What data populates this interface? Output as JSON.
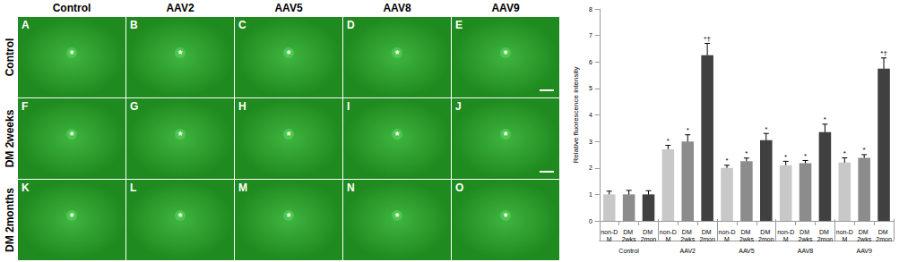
{
  "image_panels": {
    "column_labels": [
      "Control",
      "AAV2",
      "AAV5",
      "AAV8",
      "AAV9"
    ],
    "row_labels": [
      "Control",
      "DM 2weeks",
      "DM 2months"
    ],
    "panel_letters": [
      [
        "A",
        "B",
        "C",
        "D",
        "E"
      ],
      [
        "F",
        "G",
        "H",
        "I",
        "J"
      ],
      [
        "K",
        "L",
        "M",
        "N",
        "O"
      ]
    ],
    "center_mark": "*"
  },
  "chart_data": {
    "type": "bar",
    "y_label": "Relative fluorescence intensity",
    "groups": [
      "Control",
      "AAV2",
      "AAV5",
      "AAV8",
      "AAV9"
    ],
    "categories": [
      "non-DM",
      "DM 2wks",
      "DM 2mon",
      "non-DM",
      "DM 2wks",
      "DM 2mon",
      "non-DM",
      "DM 2wks",
      "DM 2mon",
      "non-DM",
      "DM 2wks",
      "DM 2mon",
      "non-DM",
      "DM 2wks",
      "DM 2mon"
    ],
    "values": [
      1,
      1,
      1,
      2.7,
      3.0,
      6.25,
      2.0,
      2.25,
      3.05,
      2.1,
      2.18,
      3.35,
      2.2,
      2.38,
      5.75
    ],
    "errors": [
      0.12,
      0.15,
      0.14,
      0.15,
      0.25,
      0.45,
      0.1,
      0.12,
      0.25,
      0.15,
      0.1,
      0.3,
      0.18,
      0.12,
      0.4
    ],
    "significance": [
      null,
      null,
      null,
      "*",
      "*",
      "*†",
      "*",
      "*",
      "*",
      "*",
      "*",
      "*",
      "*",
      "*",
      "*†"
    ],
    "colors": [
      "#c8c8c8",
      "#8c8c8c",
      "#404040",
      "#c8c8c8",
      "#8c8c8c",
      "#404040",
      "#c8c8c8",
      "#8c8c8c",
      "#404040",
      "#c8c8c8",
      "#8c8c8c",
      "#404040",
      "#c8c8c8",
      "#8c8c8c",
      "#404040"
    ],
    "ylim": [
      0,
      8
    ],
    "yticks": [
      0,
      1,
      2,
      3,
      4,
      5,
      6,
      7,
      8
    ],
    "grid": false
  }
}
